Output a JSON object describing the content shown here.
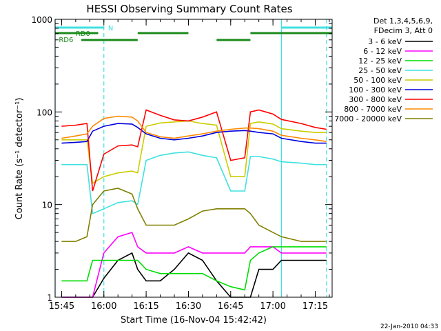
{
  "chart_data": {
    "type": "line",
    "title": "HESSI Observing Summary Count Rates",
    "xlabel": "Start Time (16-Nov-04 15:42:42)",
    "ylabel": "Count Rate (s⁻¹ detector⁻¹)",
    "y_scale": "log",
    "ylim": [
      1,
      1000
    ],
    "xlim": [
      "15:42:42",
      "17:21:00"
    ],
    "grid": false,
    "legend_placement": "right",
    "x_ticks": [
      "15:45",
      "16:00",
      "16:15",
      "16:30",
      "16:45",
      "17:00",
      "17:15"
    ],
    "y_ticks": [
      "1",
      "10",
      "100",
      "1000"
    ],
    "legend_header": [
      "Det 1,3,4,5,6,9,",
      "FDecim 3, Att 0"
    ],
    "footer_timestamp": "22-Jan-2010 04:33",
    "flags": [
      {
        "label": "N",
        "color": "#40e0e0"
      },
      {
        "label": "RD0",
        "color": "#1a8a1a"
      },
      {
        "label": "RD6",
        "color": "#1a8a1a"
      }
    ],
    "markers": [
      {
        "time": "15:42:42",
        "style": "solid",
        "color": "#40e0e0"
      },
      {
        "time": "16:00:00",
        "style": "dashed",
        "color": "#40e0e0"
      },
      {
        "time": "17:03:00",
        "style": "solid",
        "color": "#40e0e0"
      },
      {
        "time": "17:19:00",
        "style": "dashed",
        "color": "#40e0e0"
      }
    ],
    "x_times": [
      "15:45",
      "15:50",
      "15:54",
      "15:56",
      "16:00",
      "16:05",
      "16:10",
      "16:12",
      "16:15",
      "16:20",
      "16:25",
      "16:30",
      "16:35",
      "16:40",
      "16:45",
      "16:50",
      "16:52",
      "16:55",
      "17:00",
      "17:03",
      "17:10",
      "17:15",
      "17:19"
    ],
    "series": [
      {
        "name": "3 - 6 keV",
        "color": "#000000",
        "values": [
          1,
          1,
          1,
          1,
          1.6,
          2.5,
          3,
          2,
          1.5,
          1.5,
          2,
          3,
          2.5,
          1.5,
          1,
          1,
          1,
          2,
          2,
          2.5,
          2.5,
          2.5,
          2.5
        ]
      },
      {
        "name": "6 - 12 keV",
        "color": "#ff00ff",
        "values": [
          1,
          1,
          1,
          1,
          3,
          4.5,
          5,
          3.5,
          3,
          3,
          3,
          3.5,
          3,
          3,
          3,
          3,
          3.5,
          3.5,
          3.5,
          3,
          3,
          3,
          3
        ]
      },
      {
        "name": "12 - 25 keV",
        "color": "#00dd00",
        "values": [
          1.5,
          1.5,
          1.5,
          2.5,
          2.5,
          2.5,
          2.5,
          2.5,
          2,
          1.8,
          1.8,
          1.8,
          1.8,
          1.5,
          1.3,
          1.2,
          2.5,
          3,
          3.5,
          3.5,
          3.5,
          3.5,
          3.5
        ]
      },
      {
        "name": "25 - 50 keV",
        "color": "#40e0e0",
        "values": [
          27,
          27,
          27,
          8,
          9,
          10.5,
          11,
          10,
          30,
          34,
          36,
          37,
          34,
          32,
          14,
          14,
          33,
          33,
          31,
          29,
          28,
          27,
          27
        ]
      },
      {
        "name": "50 - 100 keV",
        "color": "#cccc00",
        "values": [
          50,
          50,
          50,
          17,
          20,
          22,
          23,
          22,
          70,
          76,
          78,
          80,
          75,
          72,
          20,
          20,
          75,
          78,
          74,
          66,
          62,
          60,
          60
        ]
      },
      {
        "name": "100 - 300 keV",
        "color": "#0000dd",
        "values": [
          46,
          47,
          48,
          62,
          70,
          75,
          74,
          68,
          58,
          52,
          50,
          52,
          55,
          60,
          62,
          63,
          62,
          60,
          58,
          52,
          48,
          46,
          46
        ]
      },
      {
        "name": "300 - 800 keV",
        "color": "#ff0000",
        "values": [
          70,
          72,
          75,
          14,
          35,
          43,
          44,
          42,
          105,
          92,
          82,
          80,
          88,
          100,
          30,
          32,
          100,
          105,
          95,
          83,
          75,
          68,
          65
        ]
      },
      {
        "name": "800 - 7000 keV",
        "color": "#ff8800",
        "values": [
          52,
          55,
          58,
          70,
          85,
          90,
          88,
          80,
          60,
          54,
          52,
          55,
          58,
          62,
          65,
          67,
          67,
          66,
          62,
          56,
          52,
          50,
          48
        ]
      },
      {
        "name": "7000 - 20000 keV",
        "color": "#808000",
        "values": [
          4,
          4,
          4.5,
          10,
          14,
          15,
          13,
          9,
          6,
          6,
          6,
          7,
          8.5,
          9,
          9,
          9,
          8,
          6,
          5,
          4.5,
          4,
          4,
          4
        ]
      }
    ]
  }
}
